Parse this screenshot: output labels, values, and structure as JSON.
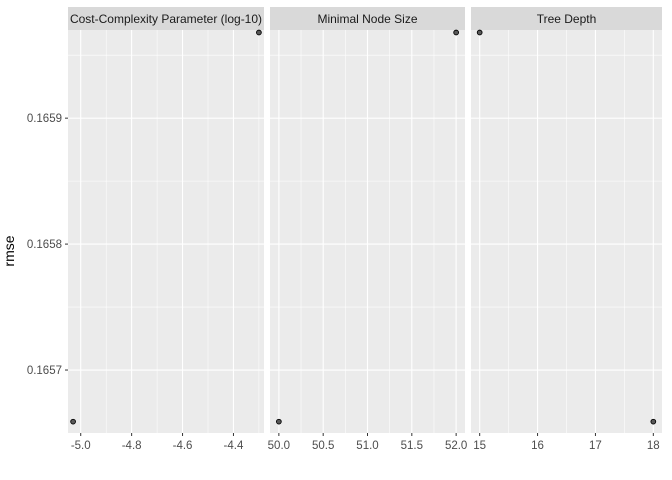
{
  "chart_data": {
    "type": "scatter",
    "facet_type": "free_x",
    "ylabel": "rmse",
    "xlabel": "",
    "ylim": [
      0.16565,
      0.16597
    ],
    "y_ticks": [
      {
        "value": 0.1657,
        "label": "0.1657"
      },
      {
        "value": 0.1658,
        "label": "0.1658"
      },
      {
        "value": 0.1659,
        "label": "0.1659"
      }
    ],
    "grid": true,
    "colors": {
      "panel_bg": "#ebebeb",
      "strip_bg": "#d9d9d9",
      "grid": "#ffffff",
      "point_fill": "#595959",
      "point_stroke": "#000000"
    },
    "panels": [
      {
        "title": "Cost-Complexity Parameter (log-10)",
        "xlim": [
          -5.05,
          -4.28
        ],
        "x_ticks": [
          {
            "value": -5.0,
            "label": "-5.0"
          },
          {
            "value": -4.8,
            "label": "-4.8"
          },
          {
            "value": -4.6,
            "label": "-4.6"
          },
          {
            "value": -4.4,
            "label": "-4.4"
          }
        ],
        "points": [
          {
            "x": -5.03,
            "y": 0.165659
          },
          {
            "x": -4.3,
            "y": 0.165968
          }
        ]
      },
      {
        "title": "Minimal Node Size",
        "xlim": [
          49.9,
          52.1
        ],
        "x_ticks": [
          {
            "value": 50.0,
            "label": "50.0"
          },
          {
            "value": 50.5,
            "label": "50.5"
          },
          {
            "value": 51.0,
            "label": "51.0"
          },
          {
            "value": 51.5,
            "label": "51.5"
          },
          {
            "value": 52.0,
            "label": "52.0"
          }
        ],
        "points": [
          {
            "x": 50,
            "y": 0.165659
          },
          {
            "x": 52,
            "y": 0.165968
          }
        ]
      },
      {
        "title": "Tree Depth",
        "xlim": [
          14.85,
          18.15
        ],
        "x_ticks": [
          {
            "value": 15,
            "label": "15"
          },
          {
            "value": 16,
            "label": "16"
          },
          {
            "value": 17,
            "label": "17"
          },
          {
            "value": 18,
            "label": "18"
          }
        ],
        "points": [
          {
            "x": 15,
            "y": 0.165968
          },
          {
            "x": 18,
            "y": 0.165659
          }
        ]
      }
    ]
  }
}
